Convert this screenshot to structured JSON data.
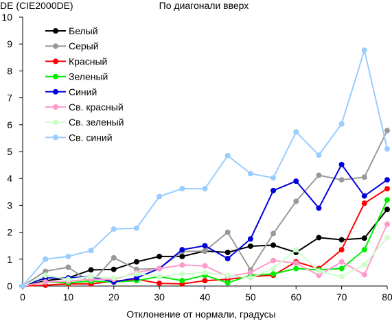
{
  "chart_data": {
    "type": "line",
    "title": "По диагонали вверх",
    "ylabel": "DE (CIE2000DE)",
    "xlabel": "Отклонение от нормали, градусы",
    "x_ticks": [
      "0",
      "10",
      "20",
      "30",
      "40",
      "50",
      "60",
      "70",
      "80"
    ],
    "y_ticks": [
      "0",
      "1",
      "2",
      "3",
      "4",
      "5",
      "6",
      "7",
      "8",
      "9",
      "10"
    ],
    "xlim": [
      0,
      80
    ],
    "ylim": [
      0,
      10
    ],
    "grid": false,
    "legend_position": "top-left",
    "x": [
      0,
      5,
      10,
      15,
      20,
      25,
      30,
      35,
      40,
      45,
      50,
      55,
      60,
      65,
      70,
      75,
      80
    ],
    "series": [
      {
        "name": "Белый",
        "color": "#000000",
        "values": [
          0,
          0.2,
          0.3,
          0.6,
          0.62,
          0.9,
          1.1,
          1.1,
          1.3,
          1.25,
          1.48,
          1.52,
          1.25,
          1.8,
          1.72,
          1.78,
          2.85
        ]
      },
      {
        "name": "Серый",
        "color": "#999999",
        "values": [
          0,
          0.55,
          0.7,
          0.12,
          1.05,
          0.62,
          0.65,
          1.28,
          1.3,
          2.0,
          0.6,
          1.95,
          3.15,
          4.12,
          3.95,
          4.05,
          5.78
        ]
      },
      {
        "name": "Красный",
        "color": "#ff0000",
        "values": [
          0,
          0.03,
          0.08,
          0.08,
          0.18,
          0.25,
          0.1,
          0.08,
          0.2,
          0.25,
          0.35,
          0.4,
          0.9,
          0.65,
          1.35,
          3.08,
          3.62
        ]
      },
      {
        "name": "Зеленый",
        "color": "#00ee00",
        "values": [
          0,
          0.15,
          0.12,
          0.18,
          0.15,
          0.2,
          0.35,
          0.2,
          0.4,
          0.12,
          0.4,
          0.45,
          0.65,
          0.6,
          0.65,
          1.35,
          3.2
        ]
      },
      {
        "name": "Синий",
        "color": "#0000dd",
        "values": [
          0,
          0.3,
          0.3,
          0.35,
          0.15,
          0.3,
          0.65,
          1.35,
          1.5,
          1.02,
          1.75,
          3.55,
          3.9,
          2.9,
          4.52,
          3.35,
          3.95
        ]
      },
      {
        "name": "Св. красный",
        "color": "#ff99cc",
        "values": [
          0,
          0.15,
          0.18,
          0.25,
          0.25,
          0.5,
          0.65,
          0.78,
          0.75,
          0.35,
          0.5,
          0.95,
          0.85,
          0.4,
          0.9,
          0.42,
          2.3
        ]
      },
      {
        "name": "Св. зеленый",
        "color": "#ccffcc",
        "values": [
          0,
          0.4,
          0.25,
          0.35,
          0.3,
          0.45,
          0.35,
          0.45,
          0.5,
          0.4,
          0.3,
          0.65,
          1.35,
          0.55,
          0.35,
          0.8,
          1.8
        ]
      },
      {
        "name": "Св. синий",
        "color": "#99ccff",
        "values": [
          0,
          1.0,
          1.1,
          1.32,
          2.12,
          2.15,
          3.33,
          3.62,
          3.62,
          4.85,
          4.18,
          4.02,
          5.73,
          4.87,
          6.03,
          8.77,
          5.1
        ]
      }
    ]
  }
}
